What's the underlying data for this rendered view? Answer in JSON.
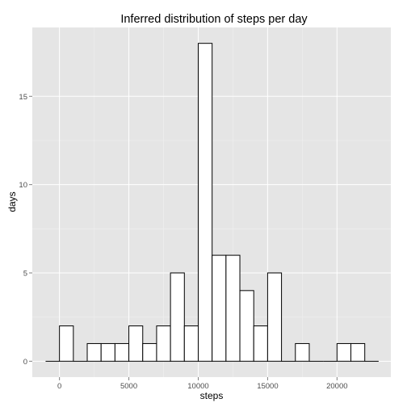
{
  "chart_data": {
    "type": "bar",
    "title": "Inferred distribution of steps per day",
    "xlabel": "steps",
    "ylabel": "days",
    "xlim": [
      -1958,
      23880
    ],
    "ylim": [
      -0.9,
      18.9
    ],
    "x_ticks": [
      0,
      5000,
      10000,
      15000,
      20000
    ],
    "x_tick_labels": [
      "0",
      "5000",
      "10000",
      "15000",
      "20000"
    ],
    "y_ticks": [
      0,
      5,
      10,
      15
    ],
    "y_tick_labels": [
      "0",
      "5",
      "10",
      "15"
    ],
    "bin_width": 1000,
    "bins": [
      {
        "x_start": -1000,
        "x_end": 0,
        "count": 0
      },
      {
        "x_start": 0,
        "x_end": 1000,
        "count": 2
      },
      {
        "x_start": 1000,
        "x_end": 2000,
        "count": 0
      },
      {
        "x_start": 2000,
        "x_end": 3000,
        "count": 1
      },
      {
        "x_start": 3000,
        "x_end": 4000,
        "count": 1
      },
      {
        "x_start": 4000,
        "x_end": 5000,
        "count": 1
      },
      {
        "x_start": 5000,
        "x_end": 6000,
        "count": 2
      },
      {
        "x_start": 6000,
        "x_end": 7000,
        "count": 1
      },
      {
        "x_start": 7000,
        "x_end": 8000,
        "count": 2
      },
      {
        "x_start": 8000,
        "x_end": 9000,
        "count": 5
      },
      {
        "x_start": 9000,
        "x_end": 10000,
        "count": 2
      },
      {
        "x_start": 10000,
        "x_end": 11000,
        "count": 18
      },
      {
        "x_start": 11000,
        "x_end": 12000,
        "count": 6
      },
      {
        "x_start": 12000,
        "x_end": 13000,
        "count": 6
      },
      {
        "x_start": 13000,
        "x_end": 14000,
        "count": 4
      },
      {
        "x_start": 14000,
        "x_end": 15000,
        "count": 2
      },
      {
        "x_start": 15000,
        "x_end": 16000,
        "count": 5
      },
      {
        "x_start": 16000,
        "x_end": 17000,
        "count": 0
      },
      {
        "x_start": 17000,
        "x_end": 18000,
        "count": 1
      },
      {
        "x_start": 18000,
        "x_end": 19000,
        "count": 0
      },
      {
        "x_start": 19000,
        "x_end": 20000,
        "count": 0
      },
      {
        "x_start": 20000,
        "x_end": 21000,
        "count": 1
      },
      {
        "x_start": 21000,
        "x_end": 22000,
        "count": 1
      },
      {
        "x_start": 22000,
        "x_end": 23000,
        "count": 0
      }
    ],
    "grid": true,
    "colors": {
      "panel_background": "#e5e5e5",
      "grid_major": "#ffffff",
      "grid_minor": "#f2f2f2",
      "bar_fill": "#ffffff",
      "bar_outline": "#000000",
      "tick_text": "#4d4d4d",
      "tick_mark": "#7f7f7f"
    }
  }
}
